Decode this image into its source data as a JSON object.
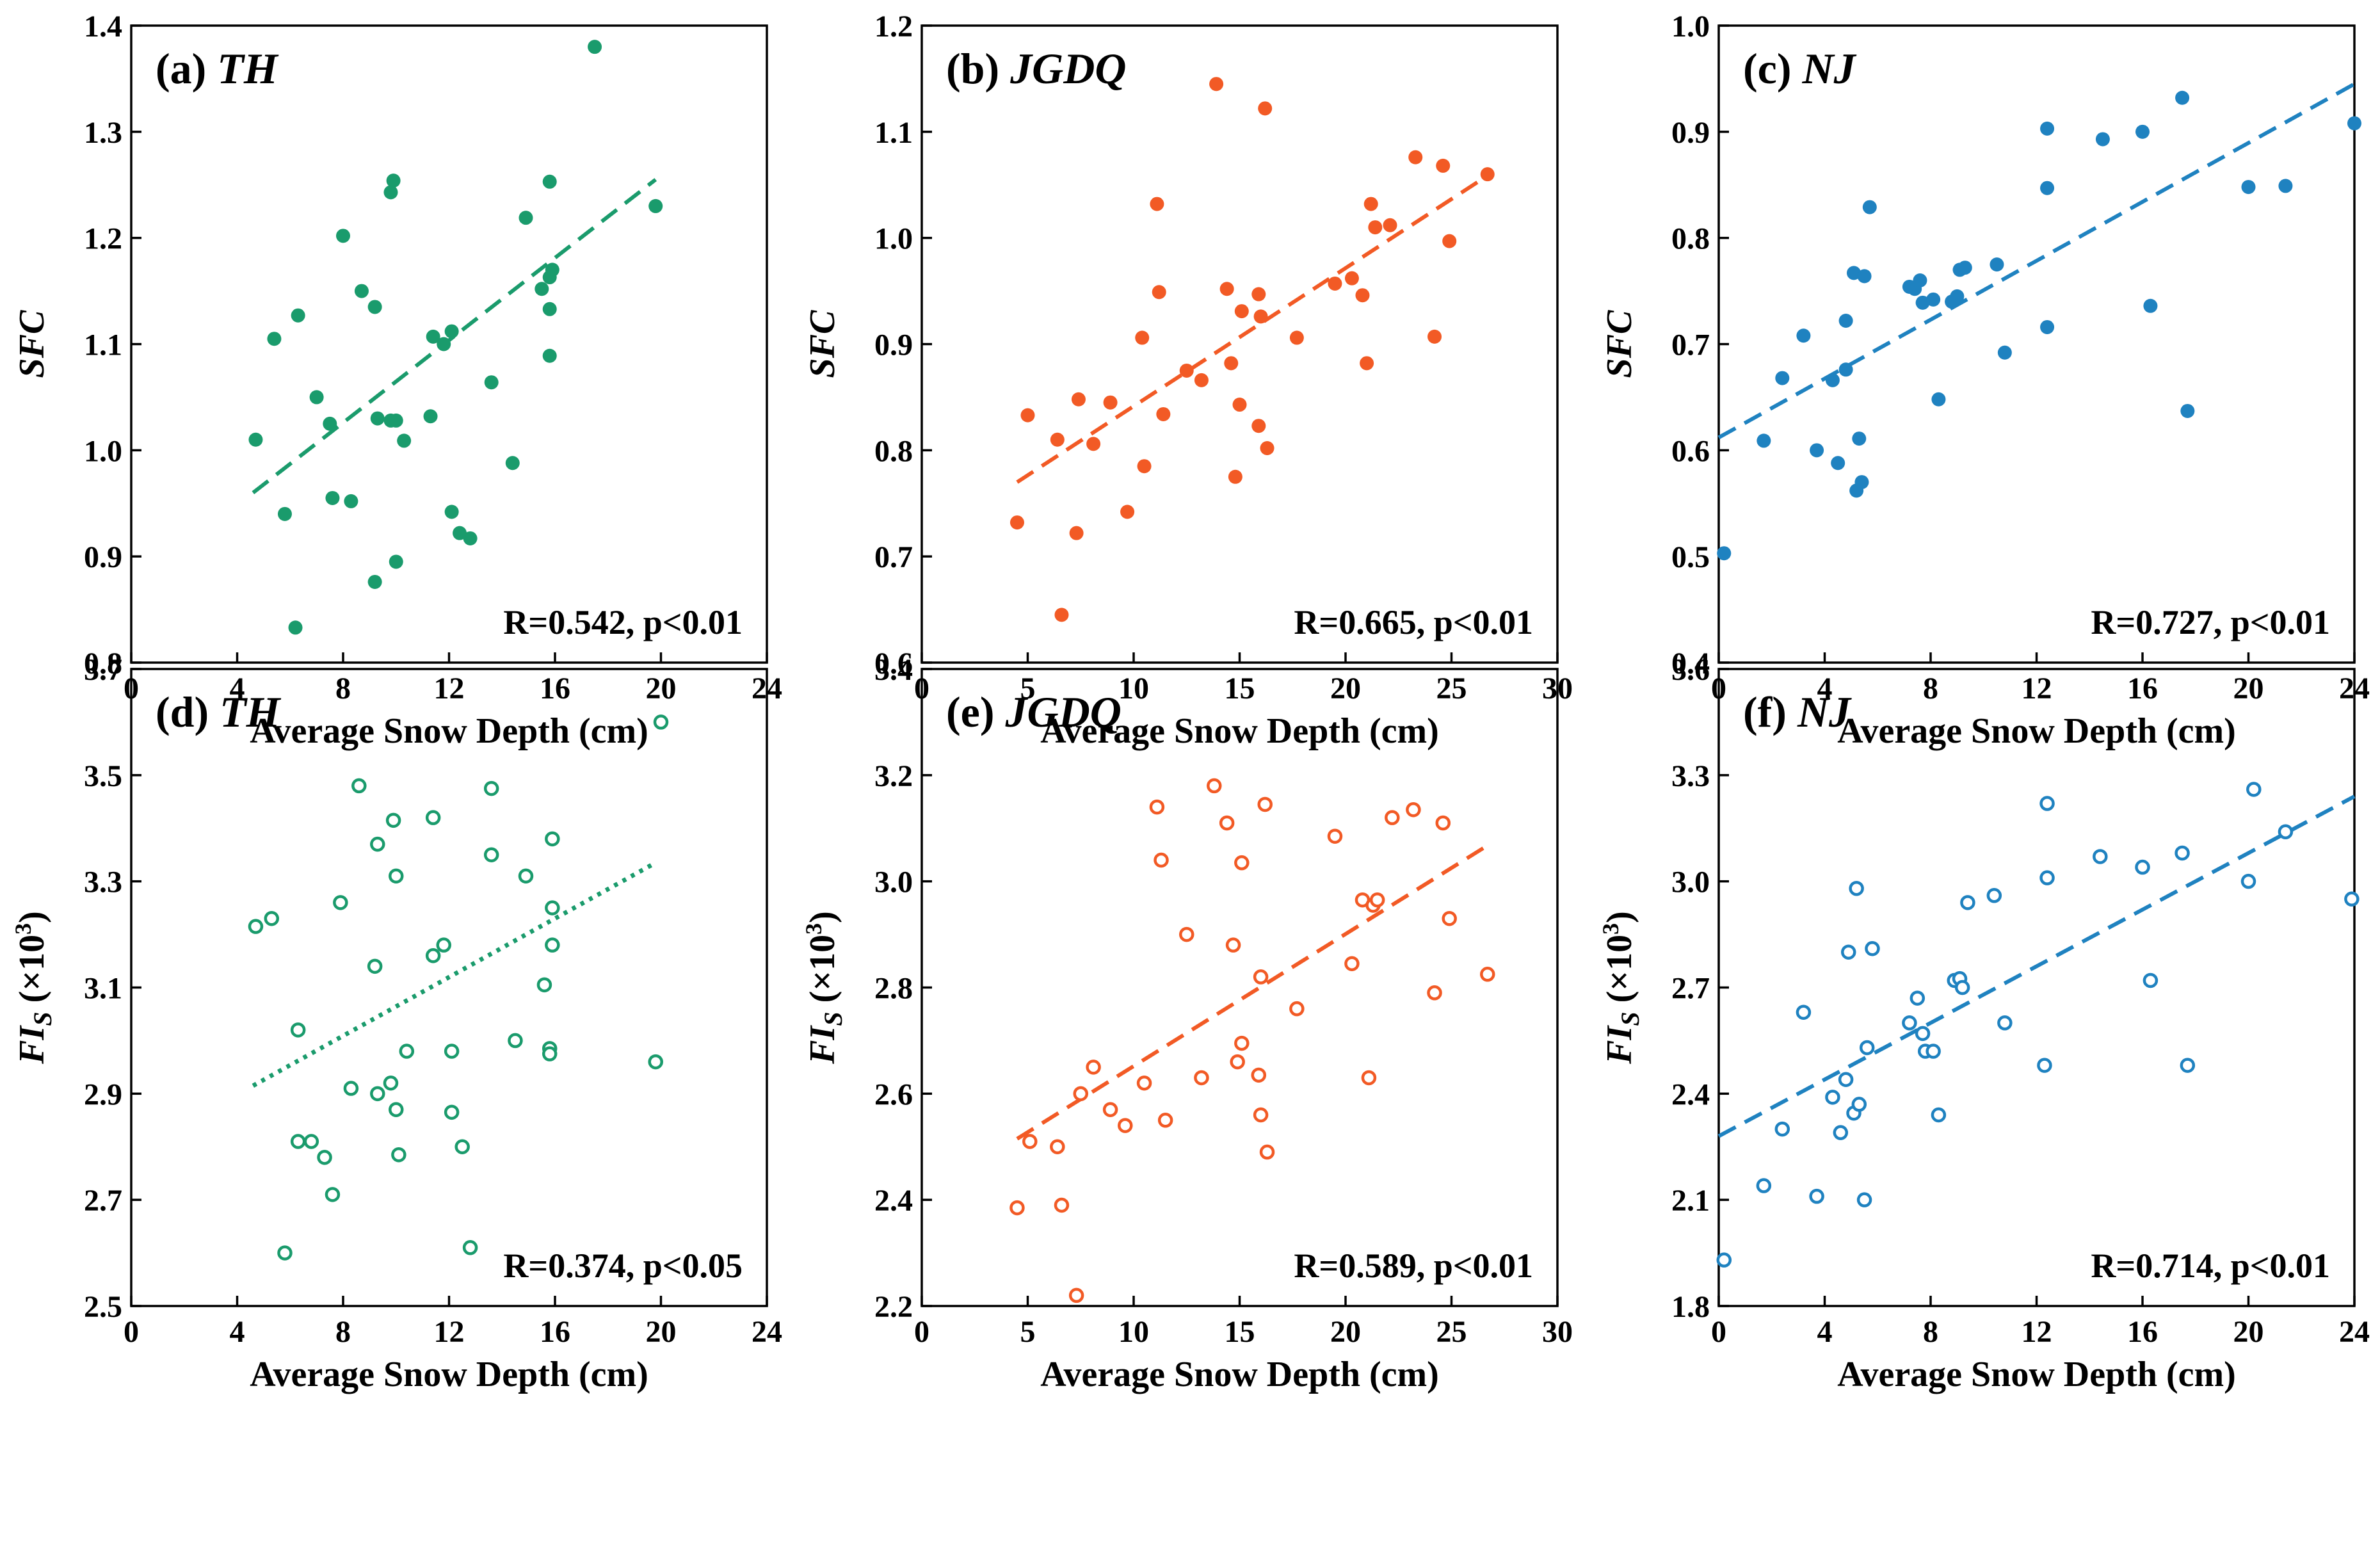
{
  "chart_data": [
    {
      "id": "a",
      "type": "scatter",
      "marker": "filled",
      "color": "#1a9b6c",
      "fit_style": "dashed",
      "label": "(a)",
      "site": "TH",
      "xlabel": "Average Snow Depth (cm)",
      "ylabel": "SFC",
      "ylabel_sub": "",
      "xlim": [
        0,
        24
      ],
      "ylim": [
        0.8,
        1.4
      ],
      "xticks": [
        "0",
        "4",
        "8",
        "12",
        "16",
        "20",
        "24"
      ],
      "yticks": [
        "0.8",
        "0.9",
        "1.0",
        "1.1",
        "1.2",
        "1.3",
        "1.4"
      ],
      "stat": "R=0.542, p<0.01",
      "fit": [
        [
          4.6,
          0.96
        ],
        [
          19.8,
          1.255
        ]
      ],
      "points": [
        [
          4.7,
          1.01
        ],
        [
          5.4,
          1.105
        ],
        [
          5.8,
          0.94
        ],
        [
          6.2,
          0.833
        ],
        [
          6.3,
          1.127
        ],
        [
          7.0,
          1.05
        ],
        [
          7.5,
          1.025
        ],
        [
          7.6,
          0.955
        ],
        [
          8.0,
          1.202
        ],
        [
          8.3,
          0.952
        ],
        [
          8.7,
          1.15
        ],
        [
          9.2,
          1.135
        ],
        [
          9.2,
          0.876
        ],
        [
          9.3,
          1.03
        ],
        [
          9.8,
          1.243
        ],
        [
          9.8,
          1.028
        ],
        [
          9.9,
          1.254
        ],
        [
          10.0,
          1.028
        ],
        [
          10.0,
          0.895
        ],
        [
          10.3,
          1.009
        ],
        [
          11.3,
          1.032
        ],
        [
          11.4,
          1.107
        ],
        [
          11.8,
          1.1
        ],
        [
          12.1,
          1.112
        ],
        [
          12.1,
          0.942
        ],
        [
          12.4,
          0.922
        ],
        [
          12.8,
          0.917
        ],
        [
          13.6,
          1.064
        ],
        [
          14.4,
          0.988
        ],
        [
          14.9,
          1.219
        ],
        [
          15.5,
          1.152
        ],
        [
          15.8,
          1.253
        ],
        [
          15.8,
          1.163
        ],
        [
          15.8,
          1.133
        ],
        [
          15.8,
          1.089
        ],
        [
          15.9,
          1.17
        ],
        [
          17.5,
          1.38
        ],
        [
          19.8,
          1.23
        ]
      ]
    },
    {
      "id": "b",
      "type": "scatter",
      "marker": "filled",
      "color": "#f25a25",
      "fit_style": "dashed",
      "label": "(b)",
      "site": "JGDQ",
      "xlabel": "Average Snow Depth (cm)",
      "ylabel": "SFC",
      "ylabel_sub": "",
      "xlim": [
        0,
        30
      ],
      "ylim": [
        0.6,
        1.2
      ],
      "xticks": [
        "0",
        "5",
        "10",
        "15",
        "20",
        "25",
        "30"
      ],
      "yticks": [
        "0.6",
        "0.7",
        "0.8",
        "0.9",
        "1.0",
        "1.1",
        "1.2"
      ],
      "stat": "R=0.665, p<0.01",
      "fit": [
        [
          4.5,
          0.77
        ],
        [
          26.8,
          1.06
        ]
      ],
      "points": [
        [
          4.5,
          0.732
        ],
        [
          5.0,
          0.833
        ],
        [
          6.4,
          0.81
        ],
        [
          6.6,
          0.645
        ],
        [
          7.3,
          0.722
        ],
        [
          7.4,
          0.848
        ],
        [
          8.1,
          0.806
        ],
        [
          8.9,
          0.845
        ],
        [
          9.7,
          0.742
        ],
        [
          10.4,
          0.906
        ],
        [
          10.5,
          0.785
        ],
        [
          11.1,
          1.032
        ],
        [
          11.2,
          0.949
        ],
        [
          11.4,
          0.834
        ],
        [
          12.5,
          0.875
        ],
        [
          13.2,
          0.866
        ],
        [
          13.9,
          1.145
        ],
        [
          14.4,
          0.952
        ],
        [
          14.6,
          0.882
        ],
        [
          14.8,
          0.775
        ],
        [
          15.0,
          0.843
        ],
        [
          15.1,
          0.931
        ],
        [
          15.9,
          0.947
        ],
        [
          15.9,
          0.823
        ],
        [
          16.0,
          0.926
        ],
        [
          16.2,
          1.122
        ],
        [
          16.3,
          0.802
        ],
        [
          17.7,
          0.906
        ],
        [
          19.5,
          0.957
        ],
        [
          20.3,
          0.962
        ],
        [
          20.8,
          0.946
        ],
        [
          21.0,
          0.882
        ],
        [
          21.2,
          1.032
        ],
        [
          21.4,
          1.01
        ],
        [
          22.1,
          1.012
        ],
        [
          23.3,
          1.076
        ],
        [
          24.2,
          0.907
        ],
        [
          24.6,
          1.068
        ],
        [
          24.9,
          0.997
        ],
        [
          26.7,
          1.06
        ]
      ]
    },
    {
      "id": "c",
      "type": "scatter",
      "marker": "filled",
      "color": "#1f82c0",
      "fit_style": "dashed",
      "label": "(c)",
      "site": "NJ",
      "xlabel": "Average Snow Depth (cm)",
      "ylabel": "SFC",
      "ylabel_sub": "",
      "xlim": [
        0,
        24
      ],
      "ylim": [
        0.4,
        1.0
      ],
      "xticks": [
        "0",
        "4",
        "8",
        "12",
        "16",
        "20",
        "24"
      ],
      "yticks": [
        "0.4",
        "0.5",
        "0.6",
        "0.7",
        "0.8",
        "0.9",
        "1.0"
      ],
      "stat": "R=0.727, p<0.01",
      "fit": [
        [
          0,
          0.612
        ],
        [
          24,
          0.945
        ]
      ],
      "points": [
        [
          0.2,
          0.503
        ],
        [
          1.7,
          0.609
        ],
        [
          2.4,
          0.668
        ],
        [
          3.2,
          0.708
        ],
        [
          3.7,
          0.6
        ],
        [
          4.3,
          0.666
        ],
        [
          4.5,
          0.588
        ],
        [
          4.8,
          0.676
        ],
        [
          4.8,
          0.722
        ],
        [
          5.1,
          0.767
        ],
        [
          5.2,
          0.562
        ],
        [
          5.3,
          0.611
        ],
        [
          5.4,
          0.57
        ],
        [
          5.5,
          0.764
        ],
        [
          5.7,
          0.829
        ],
        [
          7.2,
          0.754
        ],
        [
          7.4,
          0.752
        ],
        [
          7.6,
          0.76
        ],
        [
          7.7,
          0.739
        ],
        [
          8.1,
          0.742
        ],
        [
          8.3,
          0.648
        ],
        [
          8.8,
          0.74
        ],
        [
          9.0,
          0.745
        ],
        [
          9.1,
          0.77
        ],
        [
          9.3,
          0.772
        ],
        [
          10.5,
          0.775
        ],
        [
          10.8,
          0.692
        ],
        [
          12.4,
          0.903
        ],
        [
          12.4,
          0.847
        ],
        [
          12.4,
          0.716
        ],
        [
          14.5,
          0.893
        ],
        [
          16.0,
          0.9
        ],
        [
          16.3,
          0.736
        ],
        [
          17.5,
          0.932
        ],
        [
          17.7,
          0.637
        ],
        [
          20.0,
          0.848
        ],
        [
          21.4,
          0.849
        ],
        [
          24.0,
          0.908
        ]
      ]
    },
    {
      "id": "d",
      "type": "scatter",
      "marker": "open",
      "color": "#1a9b6c",
      "fit_style": "dotted",
      "label": "(d)",
      "site": "TH",
      "xlabel": "Average Snow Depth (cm)",
      "ylabel": "FI",
      "ylabel_sub": "S",
      "ylabel_suffix": " (×10",
      "ylabel_sup": "3",
      "ylabel_end": ")",
      "xlim": [
        0,
        24
      ],
      "ylim": [
        2.5,
        3.7
      ],
      "xticks": [
        "0",
        "4",
        "8",
        "12",
        "16",
        "20",
        "24"
      ],
      "yticks": [
        "2.5",
        "2.7",
        "2.9",
        "3.1",
        "3.3",
        "3.5",
        "3.7"
      ],
      "stat": "R=0.374, p<0.05",
      "fit": [
        [
          4.6,
          2.915
        ],
        [
          19.8,
          3.335
        ]
      ],
      "points": [
        [
          4.7,
          3.215
        ],
        [
          5.3,
          3.23
        ],
        [
          5.8,
          2.6
        ],
        [
          6.3,
          3.02
        ],
        [
          6.3,
          2.81
        ],
        [
          6.8,
          2.81
        ],
        [
          7.3,
          2.78
        ],
        [
          7.6,
          2.71
        ],
        [
          7.9,
          3.26
        ],
        [
          8.3,
          2.91
        ],
        [
          8.6,
          3.48
        ],
        [
          9.2,
          3.14
        ],
        [
          9.3,
          3.37
        ],
        [
          9.3,
          2.9
        ],
        [
          9.8,
          2.92
        ],
        [
          9.9,
          3.415
        ],
        [
          10.0,
          3.31
        ],
        [
          10.0,
          2.87
        ],
        [
          10.1,
          2.785
        ],
        [
          10.4,
          2.98
        ],
        [
          11.4,
          3.42
        ],
        [
          11.4,
          3.16
        ],
        [
          11.8,
          3.18
        ],
        [
          12.1,
          2.98
        ],
        [
          12.1,
          2.865
        ],
        [
          12.5,
          2.8
        ],
        [
          12.8,
          2.61
        ],
        [
          13.6,
          3.35
        ],
        [
          13.6,
          3.475
        ],
        [
          14.5,
          3.0
        ],
        [
          14.9,
          3.31
        ],
        [
          15.6,
          3.105
        ],
        [
          15.8,
          2.985
        ],
        [
          15.8,
          2.975
        ],
        [
          15.9,
          3.38
        ],
        [
          15.9,
          3.25
        ],
        [
          15.9,
          3.18
        ],
        [
          19.8,
          2.96
        ],
        [
          20.0,
          3.6
        ]
      ]
    },
    {
      "id": "e",
      "type": "scatter",
      "marker": "open",
      "color": "#f25a25",
      "fit_style": "dashed",
      "label": "(e)",
      "site": "JGDQ",
      "xlabel": "Average Snow Depth (cm)",
      "ylabel": "FI",
      "ylabel_sub": "S",
      "ylabel_suffix": " (×10",
      "ylabel_sup": "3",
      "ylabel_end": ")",
      "xlim": [
        0,
        30
      ],
      "ylim": [
        2.2,
        3.4
      ],
      "xticks": [
        "0",
        "5",
        "10",
        "15",
        "20",
        "25",
        "30"
      ],
      "yticks": [
        "2.2",
        "2.4",
        "2.6",
        "2.8",
        "3.0",
        "3.2",
        "3.4"
      ],
      "stat": "R=0.589, p<0.01",
      "fit": [
        [
          4.5,
          2.515
        ],
        [
          26.8,
          3.07
        ]
      ],
      "points": [
        [
          4.5,
          2.385
        ],
        [
          5.1,
          2.51
        ],
        [
          6.4,
          2.5
        ],
        [
          6.6,
          2.39
        ],
        [
          7.3,
          2.22
        ],
        [
          7.5,
          2.6
        ],
        [
          8.1,
          2.65
        ],
        [
          8.9,
          2.57
        ],
        [
          9.6,
          2.54
        ],
        [
          10.5,
          2.62
        ],
        [
          11.1,
          3.14
        ],
        [
          11.3,
          3.04
        ],
        [
          11.5,
          2.55
        ],
        [
          12.5,
          2.9
        ],
        [
          13.2,
          2.63
        ],
        [
          13.8,
          3.18
        ],
        [
          14.4,
          3.11
        ],
        [
          14.7,
          2.88
        ],
        [
          14.9,
          2.66
        ],
        [
          15.1,
          2.695
        ],
        [
          15.1,
          3.035
        ],
        [
          15.9,
          2.635
        ],
        [
          16.0,
          2.56
        ],
        [
          16.0,
          2.82
        ],
        [
          16.2,
          3.145
        ],
        [
          16.3,
          2.49
        ],
        [
          17.7,
          2.76
        ],
        [
          19.5,
          3.085
        ],
        [
          20.3,
          2.845
        ],
        [
          20.8,
          2.965
        ],
        [
          21.1,
          2.63
        ],
        [
          21.3,
          2.955
        ],
        [
          21.5,
          2.965
        ],
        [
          22.2,
          3.12
        ],
        [
          23.2,
          3.135
        ],
        [
          24.2,
          2.79
        ],
        [
          24.6,
          3.11
        ],
        [
          24.9,
          2.93
        ],
        [
          26.7,
          2.825
        ]
      ]
    },
    {
      "id": "f",
      "type": "scatter",
      "marker": "open",
      "color": "#1f82c0",
      "fit_style": "dashed",
      "label": "(f)",
      "site": "NJ",
      "xlabel": "Average Snow Depth (cm)",
      "ylabel": "FI",
      "ylabel_sub": "S",
      "ylabel_suffix": " (×10",
      "ylabel_sup": "3",
      "ylabel_end": ")",
      "xlim": [
        0,
        24
      ],
      "ylim": [
        1.8,
        3.6
      ],
      "xticks": [
        "0",
        "4",
        "8",
        "12",
        "16",
        "20",
        "24"
      ],
      "yticks": [
        "1.8",
        "2.1",
        "2.4",
        "2.7",
        "3.0",
        "3.3",
        "3.6"
      ],
      "stat": "R=0.714, p<0.01",
      "fit": [
        [
          0,
          2.28
        ],
        [
          24,
          3.24
        ]
      ],
      "points": [
        [
          0.2,
          1.93
        ],
        [
          1.7,
          2.14
        ],
        [
          2.4,
          2.3
        ],
        [
          3.2,
          2.63
        ],
        [
          3.7,
          2.11
        ],
        [
          4.3,
          2.39
        ],
        [
          4.6,
          2.29
        ],
        [
          4.8,
          2.44
        ],
        [
          4.9,
          2.8
        ],
        [
          5.1,
          2.345
        ],
        [
          5.2,
          2.98
        ],
        [
          5.3,
          2.37
        ],
        [
          5.5,
          2.1
        ],
        [
          5.6,
          2.53
        ],
        [
          5.8,
          2.81
        ],
        [
          7.2,
          2.6
        ],
        [
          7.5,
          2.67
        ],
        [
          7.7,
          2.57
        ],
        [
          7.8,
          2.52
        ],
        [
          8.1,
          2.52
        ],
        [
          8.3,
          2.34
        ],
        [
          8.9,
          2.72
        ],
        [
          9.1,
          2.725
        ],
        [
          9.2,
          2.7
        ],
        [
          9.4,
          2.94
        ],
        [
          10.4,
          2.96
        ],
        [
          10.8,
          2.6
        ],
        [
          12.3,
          2.48
        ],
        [
          12.4,
          3.01
        ],
        [
          12.4,
          3.22
        ],
        [
          14.4,
          3.07
        ],
        [
          16.0,
          3.04
        ],
        [
          16.3,
          2.72
        ],
        [
          17.5,
          3.08
        ],
        [
          17.7,
          2.48
        ],
        [
          20.0,
          3.0
        ],
        [
          20.2,
          3.26
        ],
        [
          21.4,
          3.14
        ],
        [
          23.9,
          2.95
        ]
      ]
    }
  ]
}
